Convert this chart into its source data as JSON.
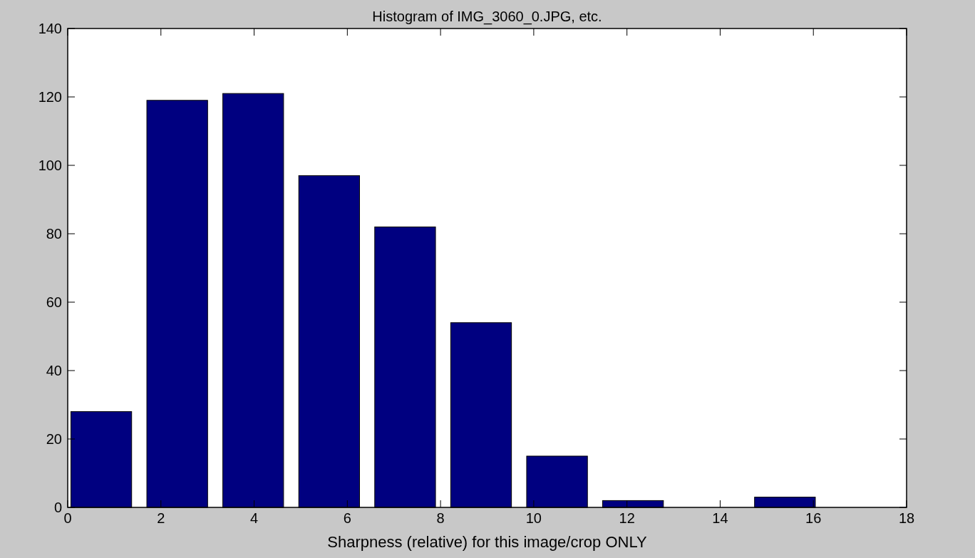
{
  "chart_data": {
    "type": "bar",
    "title": "Histogram of IMG_3060_0.JPG, etc.",
    "xlabel": "Sharpness (relative) for this image/crop ONLY",
    "x": [
      0.72,
      2.35,
      3.98,
      5.61,
      7.24,
      8.87,
      10.5,
      12.13,
      13.76,
      15.39
    ],
    "values": [
      28,
      119,
      121,
      97,
      82,
      54,
      15,
      2,
      0,
      3
    ],
    "color": "#000080",
    "xlim": [
      0,
      18
    ],
    "xticks": [
      0,
      2,
      4,
      6,
      8,
      10,
      12,
      14,
      16,
      18
    ],
    "ylim": [
      0,
      140
    ],
    "yticks": [
      0,
      20,
      40,
      60,
      80,
      100,
      120,
      140
    ],
    "grid": false
  }
}
